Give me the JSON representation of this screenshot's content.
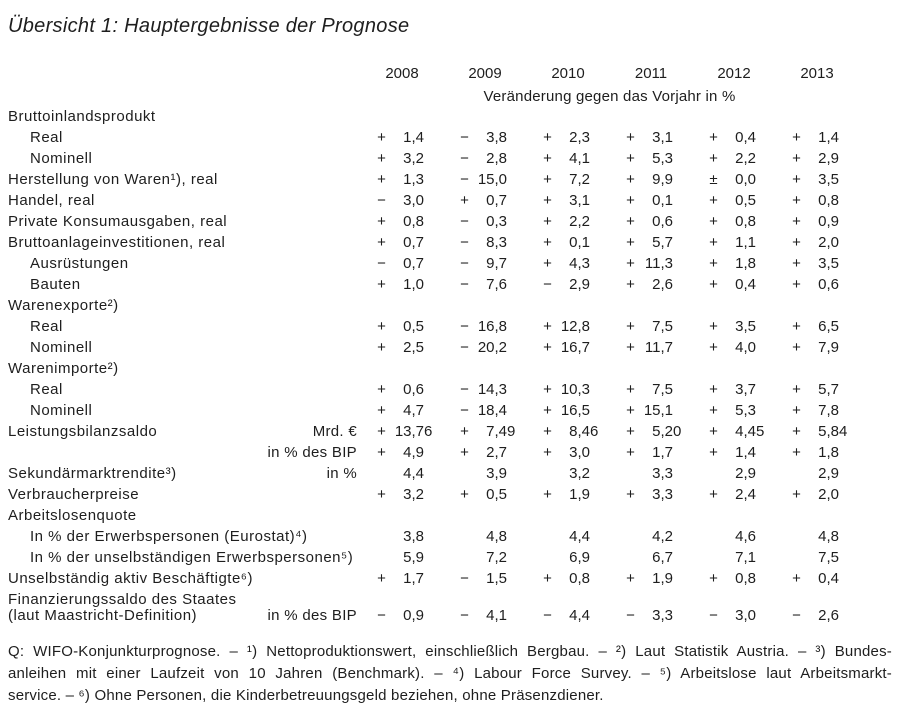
{
  "title": "Übersicht 1: Hauptergebnisse der Prognose",
  "table": {
    "years": [
      "2008",
      "2009",
      "2010",
      "2011",
      "2012",
      "2013"
    ],
    "subtitle": "Veränderung gegen das Vorjahr in %",
    "rows": [
      {
        "label": "Bruttoinlandsprodukt",
        "indent": 0
      },
      {
        "label": "Real",
        "indent": 1,
        "cells": [
          [
            "+",
            "1,4"
          ],
          [
            "−",
            "3,8"
          ],
          [
            "+",
            "2,3"
          ],
          [
            "+",
            "3,1"
          ],
          [
            "+",
            "0,4"
          ],
          [
            "+",
            "1,4"
          ]
        ]
      },
      {
        "label": "Nominell",
        "indent": 1,
        "cells": [
          [
            "+",
            "3,2"
          ],
          [
            "−",
            "2,8"
          ],
          [
            "+",
            "4,1"
          ],
          [
            "+",
            "5,3"
          ],
          [
            "+",
            "2,2"
          ],
          [
            "+",
            "2,9"
          ]
        ]
      },
      {
        "label": "Herstellung von Waren¹), real",
        "indent": 0,
        "cells": [
          [
            "+",
            "1,3"
          ],
          [
            "−",
            "15,0"
          ],
          [
            "+",
            "7,2"
          ],
          [
            "+",
            "9,9"
          ],
          [
            "±",
            "0,0"
          ],
          [
            "+",
            "3,5"
          ]
        ]
      },
      {
        "label": "Handel, real",
        "indent": 0,
        "cells": [
          [
            "−",
            "3,0"
          ],
          [
            "+",
            "0,7"
          ],
          [
            "+",
            "3,1"
          ],
          [
            "+",
            "0,1"
          ],
          [
            "+",
            "0,5"
          ],
          [
            "+",
            "0,8"
          ]
        ]
      },
      {
        "label": "Private Konsumausgaben, real",
        "indent": 0,
        "cells": [
          [
            "+",
            "0,8"
          ],
          [
            "−",
            "0,3"
          ],
          [
            "+",
            "2,2"
          ],
          [
            "+",
            "0,6"
          ],
          [
            "+",
            "0,8"
          ],
          [
            "+",
            "0,9"
          ]
        ]
      },
      {
        "label": "Bruttoanlageinvestitionen, real",
        "indent": 0,
        "cells": [
          [
            "+",
            "0,7"
          ],
          [
            "−",
            "8,3"
          ],
          [
            "+",
            "0,1"
          ],
          [
            "+",
            "5,7"
          ],
          [
            "+",
            "1,1"
          ],
          [
            "+",
            "2,0"
          ]
        ]
      },
      {
        "label": "Ausrüstungen",
        "indent": 1,
        "cells": [
          [
            "−",
            "0,7"
          ],
          [
            "−",
            "9,7"
          ],
          [
            "+",
            "4,3"
          ],
          [
            "+",
            "11,3"
          ],
          [
            "+",
            "1,8"
          ],
          [
            "+",
            "3,5"
          ]
        ]
      },
      {
        "label": "Bauten",
        "indent": 1,
        "cells": [
          [
            "+",
            "1,0"
          ],
          [
            "−",
            "7,6"
          ],
          [
            "−",
            "2,9"
          ],
          [
            "+",
            "2,6"
          ],
          [
            "+",
            "0,4"
          ],
          [
            "+",
            "0,6"
          ]
        ]
      },
      {
        "label": "Warenexporte²)",
        "indent": 0
      },
      {
        "label": "Real",
        "indent": 1,
        "cells": [
          [
            "+",
            "0,5"
          ],
          [
            "−",
            "16,8"
          ],
          [
            "+",
            "12,8"
          ],
          [
            "+",
            "7,5"
          ],
          [
            "+",
            "3,5"
          ],
          [
            "+",
            "6,5"
          ]
        ]
      },
      {
        "label": "Nominell",
        "indent": 1,
        "cells": [
          [
            "+",
            "2,5"
          ],
          [
            "−",
            "20,2"
          ],
          [
            "+",
            "16,7"
          ],
          [
            "+",
            "11,7"
          ],
          [
            "+",
            "4,0"
          ],
          [
            "+",
            "7,9"
          ]
        ]
      },
      {
        "label": "Warenimporte²)",
        "indent": 0
      },
      {
        "label": "Real",
        "indent": 1,
        "cells": [
          [
            "+",
            "0,6"
          ],
          [
            "−",
            "14,3"
          ],
          [
            "+",
            "10,3"
          ],
          [
            "+",
            "7,5"
          ],
          [
            "+",
            "3,7"
          ],
          [
            "+",
            "5,7"
          ]
        ]
      },
      {
        "label": "Nominell",
        "indent": 1,
        "cells": [
          [
            "+",
            "4,7"
          ],
          [
            "−",
            "18,4"
          ],
          [
            "+",
            "16,5"
          ],
          [
            "+",
            "15,1"
          ],
          [
            "+",
            "5,3"
          ],
          [
            "+",
            "7,8"
          ]
        ]
      },
      {
        "label": "Leistungsbilanzsaldo",
        "indent": 0,
        "unit": "Mrd. €",
        "cells": [
          [
            "+",
            "13,76"
          ],
          [
            "+",
            "7,49"
          ],
          [
            "+",
            "8,46"
          ],
          [
            "+",
            "5,20"
          ],
          [
            "+",
            "4,45"
          ],
          [
            "+",
            "5,84"
          ]
        ]
      },
      {
        "label": "",
        "indent": 0,
        "unit": "in % des BIP",
        "cells": [
          [
            "+",
            "4,9"
          ],
          [
            "+",
            "2,7"
          ],
          [
            "+",
            "3,0"
          ],
          [
            "+",
            "1,7"
          ],
          [
            "+",
            "1,4"
          ],
          [
            "+",
            "1,8"
          ]
        ]
      },
      {
        "label": "Sekundärmarktrendite³)",
        "indent": 0,
        "unit": "in %",
        "cells": [
          [
            "",
            "4,4"
          ],
          [
            "",
            "3,9"
          ],
          [
            "",
            "3,2"
          ],
          [
            "",
            "3,3"
          ],
          [
            "",
            "2,9"
          ],
          [
            "",
            "2,9"
          ]
        ]
      },
      {
        "label": "Verbraucherpreise",
        "indent": 0,
        "cells": [
          [
            "+",
            "3,2"
          ],
          [
            "+",
            "0,5"
          ],
          [
            "+",
            "1,9"
          ],
          [
            "+",
            "3,3"
          ],
          [
            "+",
            "2,4"
          ],
          [
            "+",
            "2,0"
          ]
        ]
      },
      {
        "label": "Arbeitslosenquote",
        "indent": 0
      },
      {
        "label": "In % der Erwerbspersonen (Eurostat)⁴)",
        "indent": 1,
        "cells": [
          [
            "",
            "3,8"
          ],
          [
            "",
            "4,8"
          ],
          [
            "",
            "4,4"
          ],
          [
            "",
            "4,2"
          ],
          [
            "",
            "4,6"
          ],
          [
            "",
            "4,8"
          ]
        ]
      },
      {
        "label": "In % der unselbständigen Erwerbspersonen⁵)",
        "indent": 1,
        "cells": [
          [
            "",
            "5,9"
          ],
          [
            "",
            "7,2"
          ],
          [
            "",
            "6,9"
          ],
          [
            "",
            "6,7"
          ],
          [
            "",
            "7,1"
          ],
          [
            "",
            "7,5"
          ]
        ]
      },
      {
        "label": "Unselbständig aktiv Beschäftigte⁶)",
        "indent": 0,
        "cells": [
          [
            "+",
            "1,7"
          ],
          [
            "−",
            "1,5"
          ],
          [
            "+",
            "0,8"
          ],
          [
            "+",
            "1,9"
          ],
          [
            "+",
            "0,8"
          ],
          [
            "+",
            "0,4"
          ]
        ]
      },
      {
        "label": "Finanzierungssaldo des Staates",
        "indent": 0
      },
      {
        "label": "(laut Maastricht-Definition)",
        "indent": 0,
        "wrap": true,
        "unit": "in % des BIP",
        "cells": [
          [
            "−",
            "0,9"
          ],
          [
            "−",
            "4,1"
          ],
          [
            "−",
            "4,4"
          ],
          [
            "−",
            "3,3"
          ],
          [
            "−",
            "3,0"
          ],
          [
            "−",
            "2,6"
          ]
        ]
      }
    ]
  },
  "footnote": {
    "lines": [
      "Q: WIFO-Konjunkturprognose. – ¹) Nettoproduktionswert, einschließlich Bergbau. – ²) Laut Statistik Austria. – ³) Bundes-",
      "anleihen mit einer Laufzeit von 10 Jahren (Benchmark). – ⁴) Labour Force Survey. – ⁵) Arbeitslose laut Arbeitsmarkt-",
      "service. – ⁶) Ohne Personen, die Kinderbetreuungsgeld beziehen, ohne Präsenzdiener."
    ]
  }
}
